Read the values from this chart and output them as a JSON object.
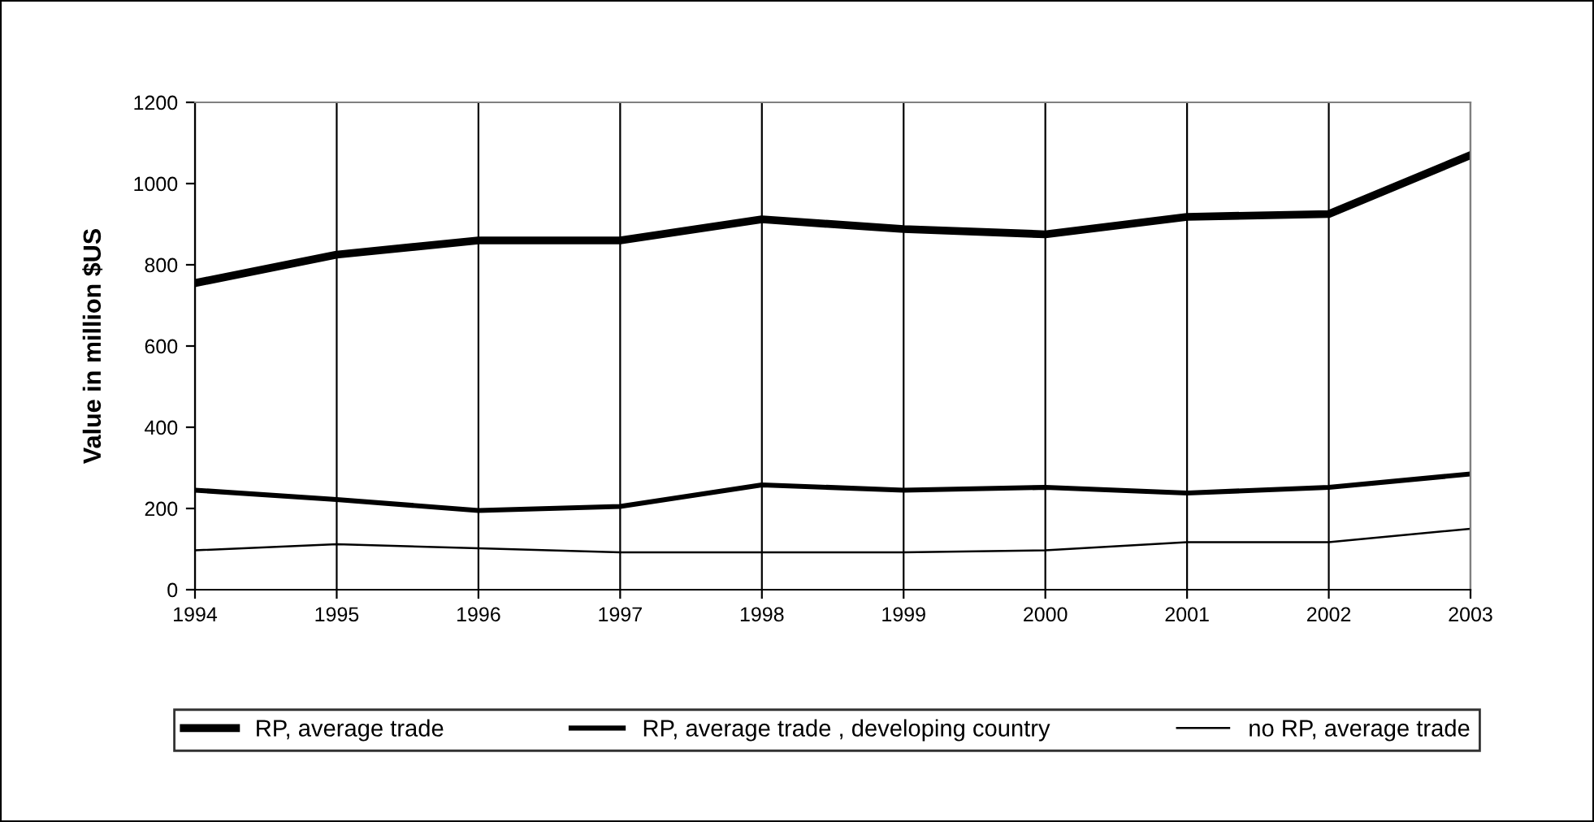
{
  "chart_data": {
    "type": "line",
    "ylabel": "Value in million $US",
    "x": [
      1994,
      1995,
      1996,
      1997,
      1998,
      1999,
      2000,
      2001,
      2002,
      2003
    ],
    "series": [
      {
        "name": "RP, average trade",
        "color": "#000000",
        "values": [
          755,
          825,
          860,
          860,
          912,
          888,
          875,
          918,
          925,
          1070
        ]
      },
      {
        "name": "RP, average trade , developing country",
        "color": "#000000",
        "values": [
          245,
          222,
          195,
          205,
          258,
          245,
          252,
          238,
          252,
          285
        ]
      },
      {
        "name": "no RP, average trade",
        "color": "#000000",
        "values": [
          97,
          112,
          102,
          92,
          92,
          92,
          97,
          117,
          117,
          150
        ]
      }
    ],
    "xlim": [
      1994,
      2003
    ],
    "xticks": [
      1994,
      1995,
      1996,
      1997,
      1998,
      1999,
      2000,
      2001,
      2002,
      2003
    ],
    "ylim": [
      0,
      1200
    ],
    "yticks": [
      0,
      200,
      400,
      600,
      800,
      1000,
      1200
    ],
    "grid": "x",
    "legend": "bottom",
    "marker": "none",
    "line_style": "solid"
  }
}
